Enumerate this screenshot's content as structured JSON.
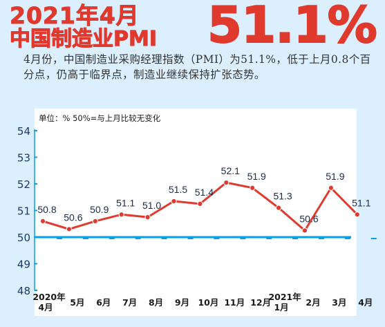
{
  "header": {
    "title_line1": "2021年4月",
    "title_line2": "中国制造业PMI",
    "big_value": "51.1%"
  },
  "summary": "4月份，中国制造业采购经理指数（PMI）为51.1%，低于上月0.8个百分点，仍高于临界点，制造业继续保持扩张态势。",
  "colors": {
    "accent": "#e0392d",
    "line": "#e0392d",
    "baseline": "#00a0e9",
    "background": "#dcefff"
  },
  "chart_data": {
    "type": "line",
    "unit_label": "单位：%  50%=与上月比较无变化",
    "categories": [
      [
        "2020年",
        "4月"
      ],
      [
        "5月"
      ],
      [
        "6月"
      ],
      [
        "7月"
      ],
      [
        "8月"
      ],
      [
        "9月"
      ],
      [
        "10月"
      ],
      [
        "11月"
      ],
      [
        "12月"
      ],
      [
        "2021年",
        "1月"
      ],
      [
        "2月"
      ],
      [
        "3月"
      ],
      [
        "4月"
      ]
    ],
    "values": [
      50.8,
      50.6,
      50.9,
      51.1,
      51.0,
      51.5,
      51.4,
      52.1,
      51.9,
      51.3,
      50.6,
      51.9,
      51.1
    ],
    "labels": [
      "50.8",
      "50.6",
      "50.9",
      "51.1",
      "51.0",
      "51.5",
      "51.4",
      "52.1",
      "51.9",
      "51.3",
      "50.6",
      "51.9",
      "51.1"
    ],
    "plotted": [
      50.6,
      50.3,
      50.6,
      50.85,
      50.75,
      51.35,
      51.25,
      52.05,
      51.85,
      51.1,
      50.25,
      51.85,
      50.85
    ],
    "ylim": [
      48,
      54
    ],
    "yticks": [
      "48",
      "49",
      "50",
      "51",
      "52",
      "53",
      "54"
    ],
    "reference_line": 50,
    "grid": false
  }
}
